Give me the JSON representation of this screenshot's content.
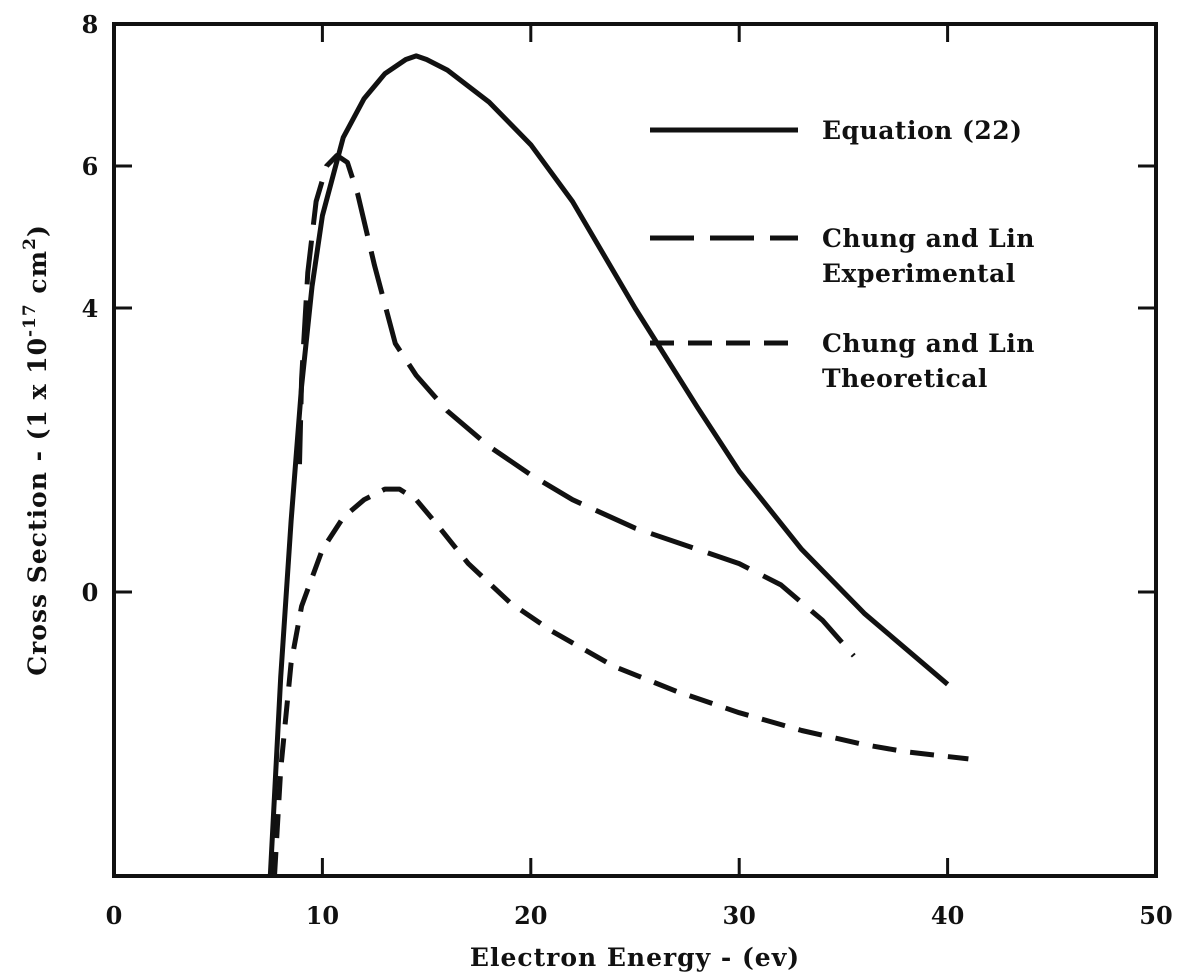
{
  "chart_data": {
    "type": "line",
    "xlabel": "Electron Energy - (ev)",
    "ylabel_main": "Cross Section - (1 x 10",
    "ylabel_exp": "-17",
    "ylabel_unit": " cm",
    "ylabel_unit_exp": "2",
    "ylabel_close": ")",
    "xlim": [
      0,
      50
    ],
    "ylim": [
      -4,
      8
    ],
    "xticks": [
      0,
      10,
      20,
      30,
      40,
      50
    ],
    "xtick_labels": [
      "0",
      "10",
      "20",
      "30",
      "40",
      "50"
    ],
    "yticks": [
      0,
      4,
      6,
      8
    ],
    "ytick_labels": [
      "0",
      "4",
      "6",
      "8"
    ],
    "grid": false,
    "legend": "top-right",
    "series": [
      {
        "name": "Equation (22)",
        "style": "solid",
        "x": [
          7.5,
          8.0,
          8.5,
          9.0,
          9.5,
          10.0,
          11.0,
          12.0,
          13.0,
          14.0,
          14.5,
          15.0,
          16.0,
          18.0,
          20.0,
          22.0,
          25.0,
          28.0,
          30.0,
          33.0,
          36.0,
          38.0,
          40.0
        ],
        "y": [
          -4.0,
          -1.2,
          1.0,
          2.9,
          4.3,
          5.3,
          6.4,
          6.95,
          7.3,
          7.5,
          7.55,
          7.5,
          7.35,
          6.9,
          6.3,
          5.5,
          4.0,
          2.6,
          1.7,
          0.6,
          -0.3,
          -0.8,
          -1.3
        ],
        "color": "#111111"
      },
      {
        "name": "Chung and Lin\nExperimental",
        "style": "long-dash",
        "x": [
          8.9,
          9.0,
          9.3,
          9.7,
          10.2,
          10.7,
          11.2,
          11.7,
          12.5,
          13.5,
          14.5,
          16.0,
          18.0,
          20.0,
          22.0,
          25.0,
          28.0,
          30.0,
          32.0,
          34.0,
          35.5
        ],
        "y": [
          1.8,
          3.0,
          4.5,
          5.5,
          6.0,
          6.15,
          6.05,
          5.6,
          4.6,
          3.5,
          3.05,
          2.55,
          2.05,
          1.65,
          1.3,
          0.9,
          0.6,
          0.4,
          0.1,
          -0.4,
          -0.9
        ],
        "color": "#111111"
      },
      {
        "name": "Chung and Lin\nTheoretical",
        "style": "short-dash",
        "x": [
          7.7,
          8.0,
          8.5,
          9.0,
          10.0,
          11.0,
          12.0,
          13.0,
          13.7,
          14.5,
          15.5,
          17.0,
          19.0,
          21.0,
          24.0,
          27.0,
          30.0,
          33.0,
          36.0,
          38.0,
          41.0
        ],
        "y": [
          -4.0,
          -2.5,
          -1.0,
          -0.2,
          0.6,
          1.05,
          1.3,
          1.45,
          1.45,
          1.3,
          0.95,
          0.4,
          -0.15,
          -0.55,
          -1.05,
          -1.4,
          -1.7,
          -1.95,
          -2.15,
          -2.25,
          -2.35
        ],
        "color": "#111111"
      }
    ]
  }
}
